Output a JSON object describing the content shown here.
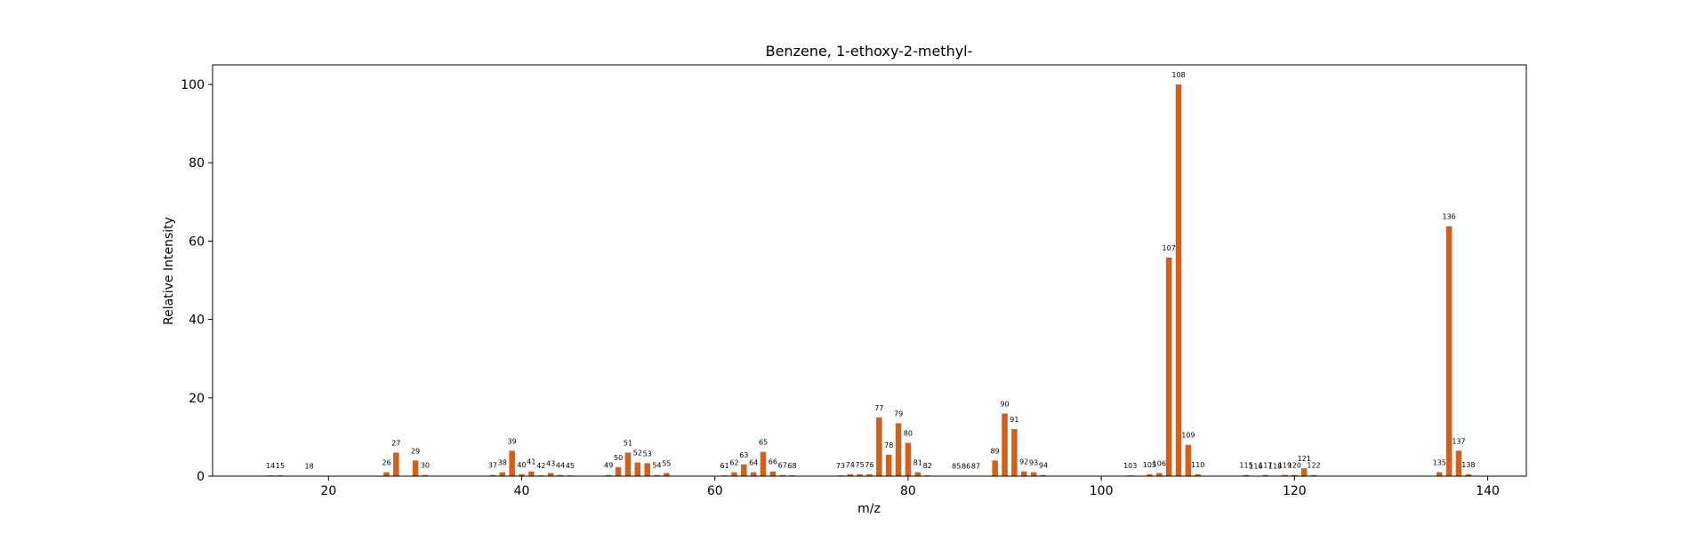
{
  "chart_data": {
    "type": "bar",
    "title": "Benzene, 1-ethoxy-2-methyl-",
    "xlabel": "m/z",
    "ylabel": "Relative Intensity",
    "xlim": [
      8,
      144
    ],
    "ylim": [
      0,
      105
    ],
    "xticks": [
      20,
      40,
      60,
      80,
      100,
      120,
      140
    ],
    "yticks": [
      0,
      20,
      40,
      60,
      80,
      100
    ],
    "grid": false,
    "bar_color": "#d2601a",
    "x": [
      14,
      15,
      18,
      26,
      27,
      29,
      30,
      37,
      38,
      39,
      40,
      41,
      42,
      43,
      44,
      45,
      49,
      50,
      51,
      52,
      53,
      54,
      55,
      61,
      62,
      63,
      64,
      65,
      66,
      67,
      68,
      73,
      74,
      75,
      76,
      77,
      78,
      79,
      80,
      81,
      82,
      85,
      86,
      87,
      89,
      90,
      91,
      92,
      93,
      94,
      103,
      105,
      106,
      107,
      108,
      109,
      110,
      115,
      116,
      117,
      118,
      119,
      120,
      121,
      122,
      135,
      136,
      137,
      138
    ],
    "values": [
      0.2,
      0.2,
      0.1,
      1.0,
      6.0,
      4.0,
      0.3,
      0.3,
      1.0,
      6.5,
      0.5,
      1.2,
      0.2,
      0.8,
      0.3,
      0.2,
      0.3,
      2.3,
      6.0,
      3.5,
      3.3,
      0.3,
      0.8,
      0.2,
      1.0,
      3.0,
      1.0,
      6.2,
      1.2,
      0.3,
      0.2,
      0.2,
      0.5,
      0.5,
      0.5,
      15.0,
      5.5,
      13.5,
      8.5,
      1.0,
      0.2,
      0.1,
      0.1,
      0.1,
      4.0,
      16.0,
      12.0,
      1.2,
      1.0,
      0.3,
      0.2,
      0.5,
      0.8,
      55.8,
      100.0,
      8.0,
      0.5,
      0.3,
      0.1,
      0.3,
      0.1,
      0.3,
      0.3,
      2.0,
      0.3,
      1.0,
      63.8,
      6.5,
      0.5
    ]
  }
}
